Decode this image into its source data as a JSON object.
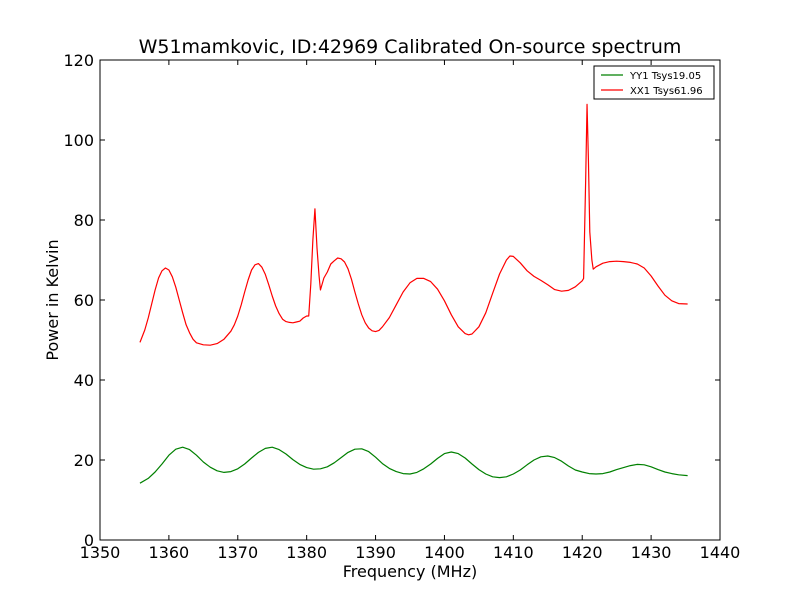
{
  "chart_data": {
    "type": "line",
    "title": "W51mamkovic, ID:42969 Calibrated On-source spectrum",
    "xlabel": "Frequency (MHz)",
    "ylabel": "Power in Kelvin",
    "xlim": [
      1350,
      1440
    ],
    "ylim": [
      0,
      120
    ],
    "xticks": [
      1350,
      1360,
      1370,
      1380,
      1390,
      1400,
      1410,
      1420,
      1430,
      1440
    ],
    "yticks": [
      0,
      20,
      40,
      60,
      80,
      100,
      120
    ],
    "grid": false,
    "legend_position": "top-right",
    "series": [
      {
        "name": "YY1 Tsys19.05",
        "color": "#008000",
        "points": [
          [
            1355.8,
            14.2
          ],
          [
            1357.0,
            15.4
          ],
          [
            1358.0,
            17.0
          ],
          [
            1359.0,
            19.0
          ],
          [
            1360.0,
            21.2
          ],
          [
            1361.0,
            22.7
          ],
          [
            1362.0,
            23.2
          ],
          [
            1363.0,
            22.6
          ],
          [
            1364.0,
            21.2
          ],
          [
            1365.0,
            19.5
          ],
          [
            1366.0,
            18.2
          ],
          [
            1367.0,
            17.3
          ],
          [
            1368.0,
            16.9
          ],
          [
            1369.0,
            17.1
          ],
          [
            1370.0,
            17.8
          ],
          [
            1371.0,
            19.0
          ],
          [
            1372.0,
            20.5
          ],
          [
            1373.0,
            21.9
          ],
          [
            1374.0,
            22.9
          ],
          [
            1375.0,
            23.2
          ],
          [
            1376.0,
            22.6
          ],
          [
            1377.0,
            21.5
          ],
          [
            1378.0,
            20.1
          ],
          [
            1379.0,
            18.9
          ],
          [
            1380.0,
            18.1
          ],
          [
            1381.0,
            17.7
          ],
          [
            1382.0,
            17.8
          ],
          [
            1383.0,
            18.3
          ],
          [
            1384.0,
            19.3
          ],
          [
            1385.0,
            20.6
          ],
          [
            1386.0,
            21.9
          ],
          [
            1387.0,
            22.7
          ],
          [
            1388.0,
            22.8
          ],
          [
            1389.0,
            22.1
          ],
          [
            1390.0,
            20.7
          ],
          [
            1391.0,
            19.1
          ],
          [
            1392.0,
            17.9
          ],
          [
            1393.0,
            17.1
          ],
          [
            1394.0,
            16.6
          ],
          [
            1395.0,
            16.5
          ],
          [
            1396.0,
            16.9
          ],
          [
            1397.0,
            17.8
          ],
          [
            1398.0,
            19.0
          ],
          [
            1399.0,
            20.4
          ],
          [
            1400.0,
            21.6
          ],
          [
            1401.0,
            22.0
          ],
          [
            1402.0,
            21.6
          ],
          [
            1403.0,
            20.5
          ],
          [
            1404.0,
            19.0
          ],
          [
            1405.0,
            17.6
          ],
          [
            1406.0,
            16.5
          ],
          [
            1407.0,
            15.8
          ],
          [
            1408.0,
            15.6
          ],
          [
            1409.0,
            15.8
          ],
          [
            1410.0,
            16.5
          ],
          [
            1411.0,
            17.5
          ],
          [
            1412.0,
            18.8
          ],
          [
            1413.0,
            20.0
          ],
          [
            1414.0,
            20.8
          ],
          [
            1415.0,
            21.0
          ],
          [
            1416.0,
            20.6
          ],
          [
            1417.0,
            19.7
          ],
          [
            1418.0,
            18.5
          ],
          [
            1419.0,
            17.5
          ],
          [
            1420.0,
            17.0
          ],
          [
            1421.0,
            16.6
          ],
          [
            1422.0,
            16.5
          ],
          [
            1423.0,
            16.6
          ],
          [
            1424.0,
            17.0
          ],
          [
            1425.0,
            17.6
          ],
          [
            1426.0,
            18.1
          ],
          [
            1427.0,
            18.6
          ],
          [
            1428.0,
            18.9
          ],
          [
            1429.0,
            18.8
          ],
          [
            1430.0,
            18.3
          ],
          [
            1431.0,
            17.6
          ],
          [
            1432.0,
            17.0
          ],
          [
            1433.0,
            16.6
          ],
          [
            1434.0,
            16.3
          ],
          [
            1435.3,
            16.1
          ]
        ]
      },
      {
        "name": "XX1 Tsys61.96",
        "color": "#ff0000",
        "points": [
          [
            1355.8,
            49.4
          ],
          [
            1356.5,
            52.5
          ],
          [
            1357.0,
            55.5
          ],
          [
            1357.5,
            59.0
          ],
          [
            1358.0,
            62.5
          ],
          [
            1358.5,
            65.5
          ],
          [
            1359.0,
            67.3
          ],
          [
            1359.5,
            68.0
          ],
          [
            1360.0,
            67.5
          ],
          [
            1360.5,
            65.8
          ],
          [
            1361.0,
            63.2
          ],
          [
            1361.5,
            60.0
          ],
          [
            1362.0,
            56.8
          ],
          [
            1362.5,
            53.8
          ],
          [
            1363.0,
            51.8
          ],
          [
            1363.5,
            50.2
          ],
          [
            1364.0,
            49.3
          ],
          [
            1365.0,
            48.8
          ],
          [
            1366.0,
            48.7
          ],
          [
            1367.0,
            49.1
          ],
          [
            1368.0,
            50.2
          ],
          [
            1369.0,
            52.2
          ],
          [
            1369.5,
            53.8
          ],
          [
            1370.0,
            56.0
          ],
          [
            1370.5,
            58.8
          ],
          [
            1371.0,
            62.0
          ],
          [
            1371.5,
            65.0
          ],
          [
            1372.0,
            67.5
          ],
          [
            1372.5,
            68.8
          ],
          [
            1373.0,
            69.1
          ],
          [
            1373.5,
            68.2
          ],
          [
            1374.0,
            66.4
          ],
          [
            1374.5,
            63.8
          ],
          [
            1375.0,
            61.0
          ],
          [
            1375.5,
            58.5
          ],
          [
            1376.0,
            56.6
          ],
          [
            1376.5,
            55.2
          ],
          [
            1377.0,
            54.6
          ],
          [
            1377.5,
            54.4
          ],
          [
            1378.0,
            54.3
          ],
          [
            1378.5,
            54.5
          ],
          [
            1379.0,
            54.7
          ],
          [
            1379.5,
            55.5
          ],
          [
            1380.0,
            56.0
          ],
          [
            1380.3,
            56.0
          ],
          [
            1380.6,
            64.0
          ],
          [
            1380.9,
            75.0
          ],
          [
            1381.2,
            82.8
          ],
          [
            1381.5,
            73.0
          ],
          [
            1381.8,
            66.0
          ],
          [
            1382.0,
            62.5
          ],
          [
            1382.5,
            65.5
          ],
          [
            1383.0,
            67.0
          ],
          [
            1383.5,
            69.0
          ],
          [
            1384.0,
            69.8
          ],
          [
            1384.5,
            70.5
          ],
          [
            1385.0,
            70.3
          ],
          [
            1385.5,
            69.5
          ],
          [
            1386.0,
            67.8
          ],
          [
            1386.5,
            65.2
          ],
          [
            1387.0,
            62.0
          ],
          [
            1387.5,
            59.0
          ],
          [
            1388.0,
            56.3
          ],
          [
            1388.5,
            54.3
          ],
          [
            1389.0,
            53.0
          ],
          [
            1389.5,
            52.3
          ],
          [
            1390.0,
            52.1
          ],
          [
            1390.5,
            52.4
          ],
          [
            1391.0,
            53.3
          ],
          [
            1392.0,
            55.6
          ],
          [
            1393.0,
            58.8
          ],
          [
            1394.0,
            62.0
          ],
          [
            1395.0,
            64.3
          ],
          [
            1396.0,
            65.4
          ],
          [
            1397.0,
            65.4
          ],
          [
            1398.0,
            64.6
          ],
          [
            1399.0,
            62.7
          ],
          [
            1400.0,
            59.8
          ],
          [
            1401.0,
            56.3
          ],
          [
            1402.0,
            53.3
          ],
          [
            1403.0,
            51.6
          ],
          [
            1403.5,
            51.3
          ],
          [
            1404.0,
            51.5
          ],
          [
            1405.0,
            53.3
          ],
          [
            1406.0,
            56.8
          ],
          [
            1407.0,
            61.7
          ],
          [
            1408.0,
            66.5
          ],
          [
            1409.0,
            70.0
          ],
          [
            1409.5,
            71.0
          ],
          [
            1410.0,
            70.9
          ],
          [
            1411.0,
            69.3
          ],
          [
            1412.0,
            67.3
          ],
          [
            1413.0,
            65.9
          ],
          [
            1414.0,
            64.9
          ],
          [
            1415.0,
            63.8
          ],
          [
            1416.0,
            62.6
          ],
          [
            1417.0,
            62.2
          ],
          [
            1418.0,
            62.4
          ],
          [
            1419.0,
            63.3
          ],
          [
            1420.0,
            64.8
          ],
          [
            1420.2,
            65.4
          ],
          [
            1420.5,
            90.0
          ],
          [
            1420.7,
            108.9
          ],
          [
            1420.9,
            95.0
          ],
          [
            1421.1,
            77.0
          ],
          [
            1421.4,
            70.0
          ],
          [
            1421.6,
            67.7
          ],
          [
            1422.0,
            68.3
          ],
          [
            1423.0,
            69.2
          ],
          [
            1424.0,
            69.6
          ],
          [
            1425.0,
            69.7
          ],
          [
            1426.0,
            69.6
          ],
          [
            1427.0,
            69.4
          ],
          [
            1428.0,
            69.0
          ],
          [
            1429.0,
            68.0
          ],
          [
            1430.0,
            66.0
          ],
          [
            1431.0,
            63.5
          ],
          [
            1432.0,
            61.2
          ],
          [
            1433.0,
            59.8
          ],
          [
            1434.0,
            59.1
          ],
          [
            1435.3,
            59.0
          ]
        ]
      }
    ]
  }
}
